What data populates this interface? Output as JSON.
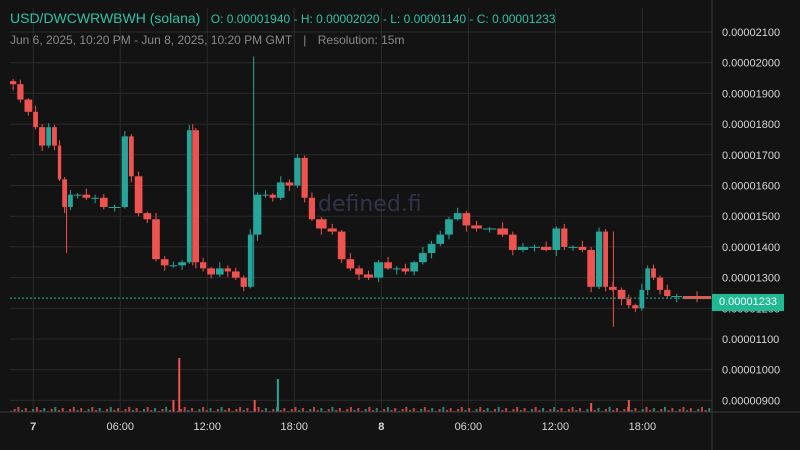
{
  "header": {
    "pair": "USD/DWCWRWBWH (solana)",
    "ohlc": "O: 0.00001940 - H: 0.00002020 - L: 0.00001140 - C: 0.00001233",
    "range": "Jun 6, 2025, 10:20 PM - Jun 8, 2025, 10:20 PM GMT",
    "separator": "|",
    "resolution": "Resolution: 15m"
  },
  "watermark": "defined.fi",
  "colors": {
    "up": "#26a69a",
    "down": "#ef5350",
    "price_line": "#1fb993",
    "grid": "#2a2a2a",
    "axis_text": "#d6d6d6"
  },
  "price_tag": "0.00001233",
  "chart_data": {
    "type": "candlestick",
    "title": "USD/DWCWRWBWH (solana)",
    "resolution": "15m",
    "ylim": [
      8.7e-06,
      2.11e-05
    ],
    "y_ticks": [
      "0.00002100",
      "0.00002000",
      "0.00001900",
      "0.00001800",
      "0.00001700",
      "0.00001600",
      "0.00001500",
      "0.00001400",
      "0.00001300",
      "0.00001200",
      "0.00001100",
      "0.00001000",
      "0.00000900"
    ],
    "x_ticks": [
      "7",
      "06:00",
      "12:00",
      "18:00",
      "8",
      "06:00",
      "12:00",
      "18:00"
    ],
    "x_ticks_bold": [
      "7",
      "8"
    ],
    "x_range_hours": [
      -1.6,
      46.8
    ],
    "last_price": 1.233e-05,
    "ohlc_summary": {
      "open": 1.94e-05,
      "high": 2.02e-05,
      "low": 1.14e-05,
      "close": 1.233e-05
    },
    "price_points_hours": [
      [
        -1.6,
        19.4
      ],
      [
        -1.1,
        19.3
      ],
      [
        -0.6,
        18.8
      ],
      [
        0.0,
        18.4
      ],
      [
        0.4,
        17.9
      ],
      [
        0.9,
        17.3
      ],
      [
        1.3,
        17.9
      ],
      [
        1.7,
        17.3
      ],
      [
        2.0,
        16.2
      ],
      [
        2.4,
        15.3
      ],
      [
        2.8,
        15.7
      ],
      [
        3.4,
        15.7
      ],
      [
        4.0,
        15.6
      ],
      [
        4.6,
        15.6
      ],
      [
        5.2,
        15.3
      ],
      [
        6.1,
        15.3
      ],
      [
        6.6,
        17.6
      ],
      [
        7.0,
        16.3
      ],
      [
        7.6,
        15.1
      ],
      [
        8.2,
        14.9
      ],
      [
        8.8,
        13.6
      ],
      [
        9.4,
        13.4
      ],
      [
        10.0,
        13.4
      ],
      [
        10.6,
        13.5
      ],
      [
        11.0,
        17.8
      ],
      [
        11.5,
        13.5
      ],
      [
        12.0,
        13.3
      ],
      [
        12.6,
        13.1
      ],
      [
        13.2,
        13.3
      ],
      [
        13.7,
        13.2
      ],
      [
        14.3,
        13.0
      ],
      [
        14.8,
        12.7
      ],
      [
        15.2,
        14.4
      ],
      [
        15.8,
        15.7
      ],
      [
        16.3,
        15.7
      ],
      [
        16.8,
        15.6
      ],
      [
        17.4,
        16.1
      ],
      [
        18.0,
        16.0
      ],
      [
        18.5,
        16.9
      ],
      [
        19.0,
        15.6
      ],
      [
        19.5,
        14.9
      ],
      [
        20.3,
        14.6
      ],
      [
        21.0,
        14.5
      ],
      [
        21.6,
        13.6
      ],
      [
        22.2,
        13.3
      ],
      [
        22.8,
        13.1
      ],
      [
        23.5,
        13.0
      ],
      [
        24.2,
        13.5
      ],
      [
        24.8,
        13.3
      ],
      [
        25.4,
        13.3
      ],
      [
        26.0,
        13.2
      ],
      [
        26.6,
        13.5
      ],
      [
        27.2,
        13.8
      ],
      [
        27.8,
        14.1
      ],
      [
        28.4,
        14.4
      ],
      [
        29.0,
        14.9
      ],
      [
        29.6,
        15.1
      ],
      [
        30.2,
        14.7
      ],
      [
        31.0,
        14.6
      ],
      [
        32.0,
        14.6
      ],
      [
        32.8,
        14.4
      ],
      [
        33.4,
        13.9
      ],
      [
        34.2,
        14.0
      ],
      [
        35.0,
        14.0
      ],
      [
        35.8,
        13.9
      ],
      [
        36.4,
        14.6
      ],
      [
        36.9,
        14.0
      ],
      [
        37.6,
        14.0
      ],
      [
        38.2,
        13.9
      ],
      [
        38.8,
        12.7
      ],
      [
        39.3,
        14.5
      ],
      [
        39.7,
        12.7
      ],
      [
        40.3,
        12.6
      ],
      [
        40.9,
        12.3
      ],
      [
        41.3,
        12.1
      ],
      [
        41.8,
        12.0
      ],
      [
        42.2,
        12.6
      ],
      [
        42.6,
        13.3
      ],
      [
        43.0,
        13.0
      ],
      [
        43.5,
        12.6
      ],
      [
        44.0,
        12.4
      ],
      [
        44.8,
        12.4
      ],
      [
        46.8,
        12.3
      ]
    ],
    "price_unit_scale": 1e-06,
    "volume_spikes_hours": [
      [
        10.0,
        0.9
      ],
      [
        16.8,
        0.55
      ],
      [
        9.6,
        0.2
      ],
      [
        15.2,
        0.2
      ],
      [
        41.0,
        0.2
      ],
      [
        38.4,
        0.15
      ]
    ]
  }
}
